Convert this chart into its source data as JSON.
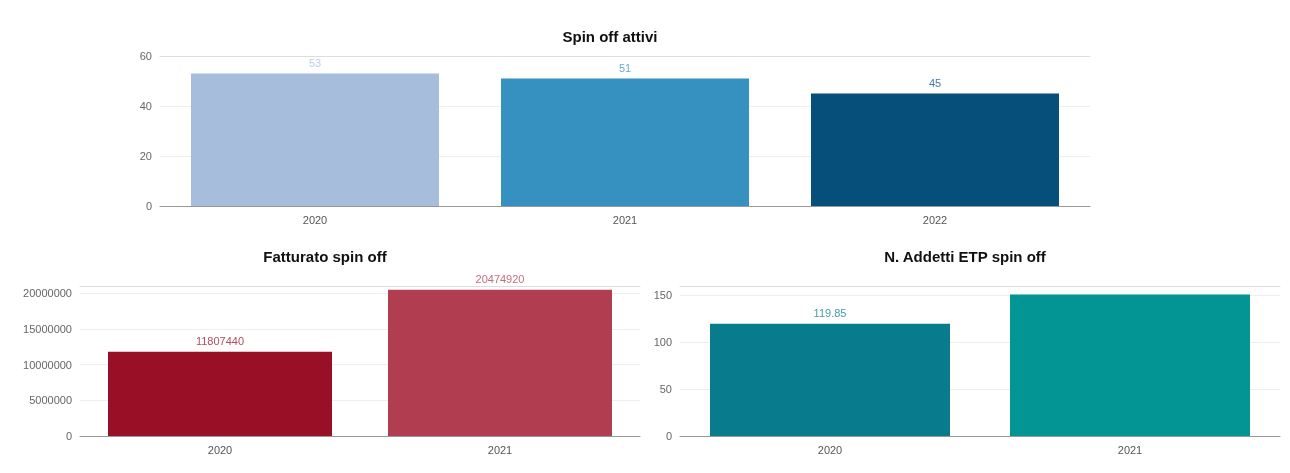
{
  "chart_data": [
    {
      "type": "bar",
      "title": "Spin off attivi",
      "categories": [
        "2020",
        "2021",
        "2022"
      ],
      "values": [
        53,
        51,
        45
      ],
      "colors": [
        "#a6bddb",
        "#3690c0",
        "#054f7a"
      ],
      "ylim": [
        0,
        60
      ],
      "yticks": [
        0,
        20,
        40,
        60
      ],
      "grid": "y",
      "data_labels": true
    },
    {
      "type": "bar",
      "title": "Fatturato spin off",
      "categories": [
        "2020",
        "2021"
      ],
      "values": [
        11807440,
        20474920
      ],
      "colors": [
        "#990f26",
        "#b13d50"
      ],
      "ylim": [
        0,
        21000000
      ],
      "yticks": [
        0,
        5000000,
        10000000,
        15000000,
        20000000
      ],
      "grid": "y",
      "data_labels": true
    },
    {
      "type": "bar",
      "title": "N. Addetti ETP spin off",
      "categories": [
        "2020",
        "2021"
      ],
      "values": [
        119.85,
        151
      ],
      "value_labels": [
        "119.85",
        null
      ],
      "colors": [
        "#087b8c",
        "#039494"
      ],
      "ylim": [
        0,
        160
      ],
      "yticks": [
        0,
        50,
        100,
        150
      ],
      "grid": "y"
    }
  ]
}
